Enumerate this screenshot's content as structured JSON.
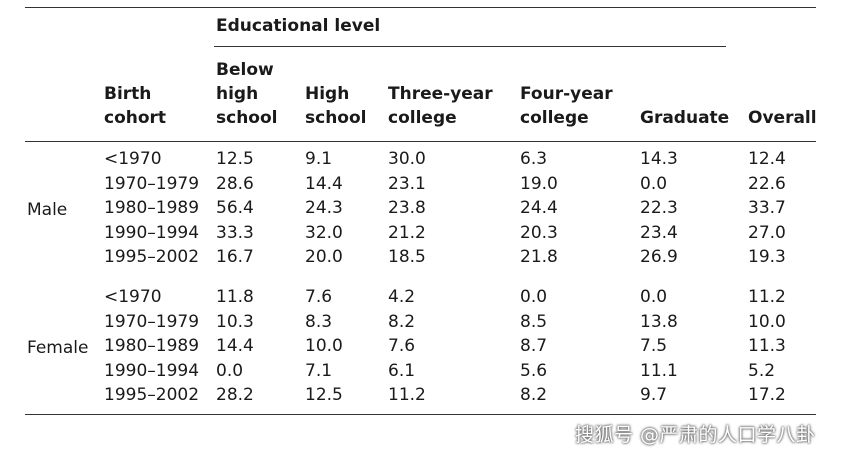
{
  "table": {
    "group_header": "Educational level",
    "columns": [
      {
        "key": "cohort",
        "lines": [
          "Birth",
          "cohort"
        ]
      },
      {
        "key": "below_high_school",
        "lines": [
          "Below",
          "high",
          "school"
        ]
      },
      {
        "key": "high_school",
        "lines": [
          "High",
          "school"
        ]
      },
      {
        "key": "three_year_college",
        "lines": [
          "Three-year",
          "college"
        ]
      },
      {
        "key": "four_year_college",
        "lines": [
          "Four-year",
          "college"
        ]
      },
      {
        "key": "graduate",
        "lines": [
          "Graduate"
        ]
      },
      {
        "key": "overall",
        "lines": [
          "Overall"
        ]
      }
    ],
    "groups": [
      {
        "label": "Male",
        "rows": [
          [
            "<1970",
            "12.5",
            "9.1",
            "30.0",
            "6.3",
            "14.3",
            "12.4"
          ],
          [
            "1970–1979",
            "28.6",
            "14.4",
            "23.1",
            "19.0",
            "0.0",
            "22.6"
          ],
          [
            "1980–1989",
            "56.4",
            "24.3",
            "23.8",
            "24.4",
            "22.3",
            "33.7"
          ],
          [
            "1990–1994",
            "33.3",
            "32.0",
            "21.2",
            "20.3",
            "23.4",
            "27.0"
          ],
          [
            "1995–2002",
            "16.7",
            "20.0",
            "18.5",
            "21.8",
            "26.9",
            "19.3"
          ]
        ]
      },
      {
        "label": "Female",
        "rows": [
          [
            "<1970",
            "11.8",
            "7.6",
            "4.2",
            "0.0",
            "0.0",
            "11.2"
          ],
          [
            "1970–1979",
            "10.3",
            "8.3",
            "8.2",
            "8.5",
            "13.8",
            "10.0"
          ],
          [
            "1980–1989",
            "14.4",
            "10.0",
            "7.6",
            "8.7",
            "7.5",
            "11.3"
          ],
          [
            "1990–1994",
            "0.0",
            "7.1",
            "6.1",
            "5.6",
            "11.1",
            "5.2"
          ],
          [
            "1995–2002",
            "28.2",
            "12.5",
            "11.2",
            "8.2",
            "9.7",
            "17.2"
          ]
        ]
      }
    ]
  },
  "watermark": "搜狐号 @严肃的人口学八卦"
}
